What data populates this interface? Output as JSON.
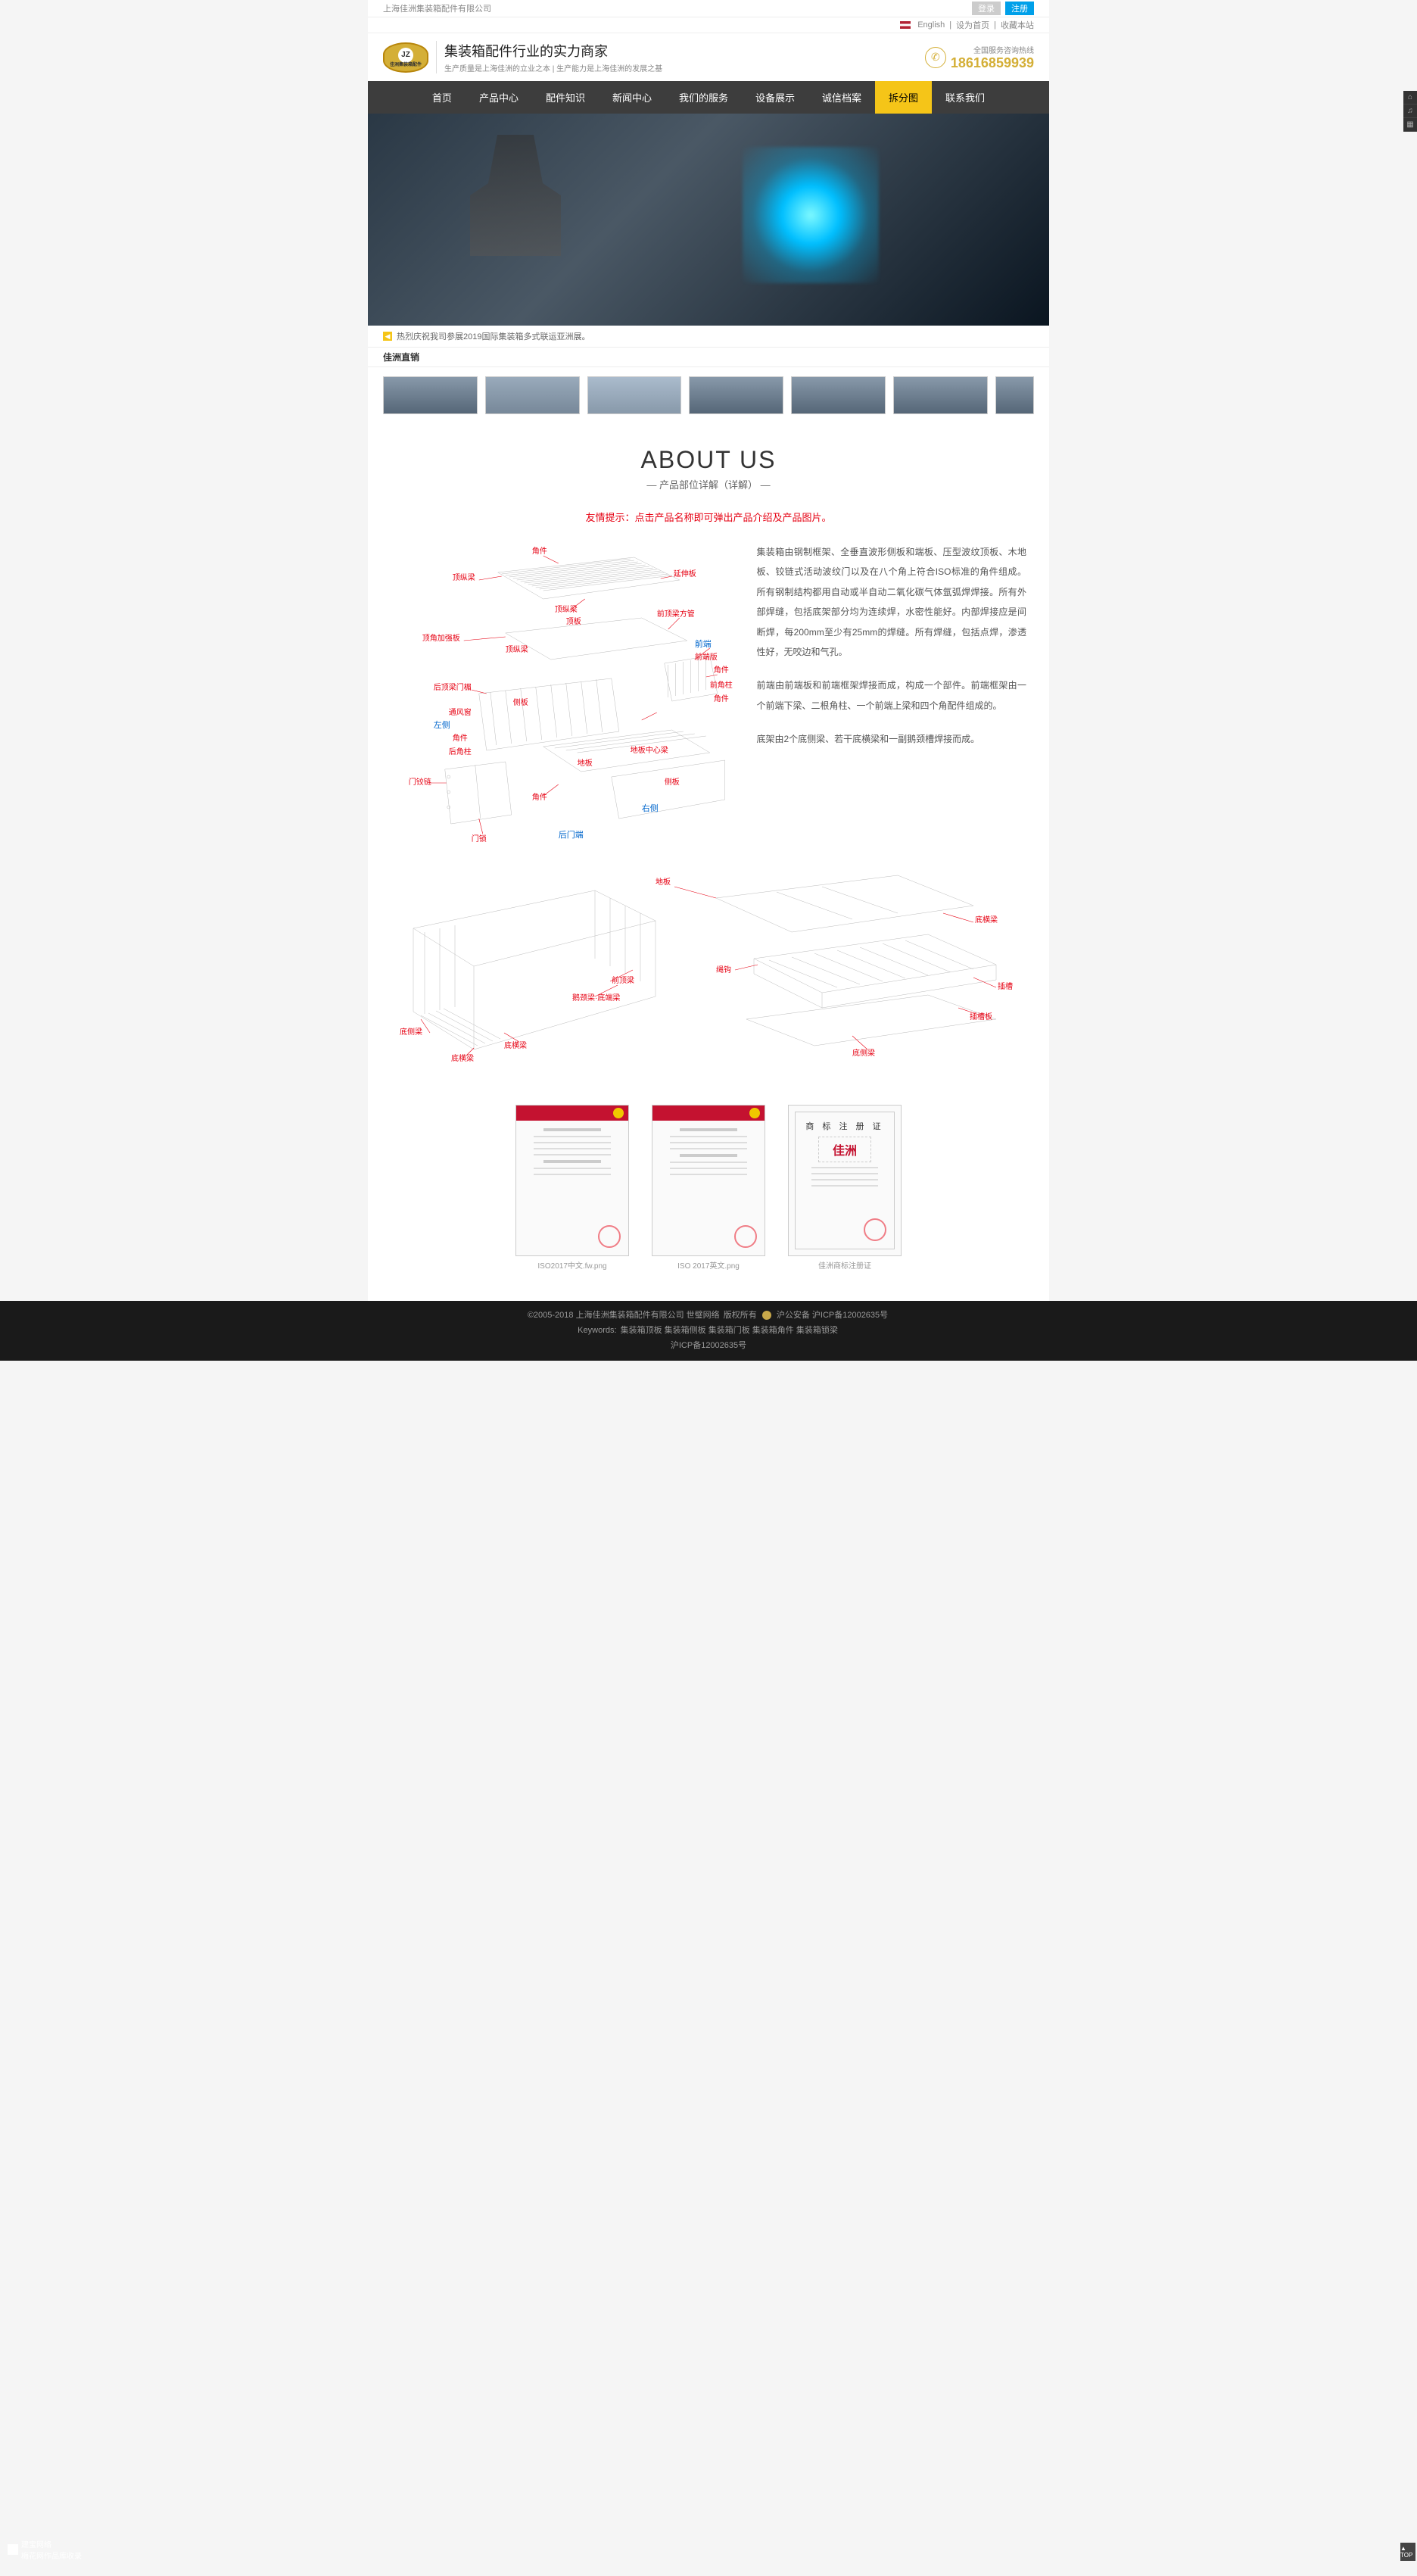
{
  "topbar": {
    "company": "上海佳洲集装箱配件有限公司",
    "login": "登录",
    "register": "注册",
    "lang": "English",
    "sethome": "设为首页",
    "fav": "收藏本站"
  },
  "header": {
    "logo_top": "JZ",
    "logo_bot": "佳洲集装箱配件",
    "slogan_h1": "集装箱配件行业的实力商家",
    "slogan_p": "生产质量是上海佳洲的立业之本 | 生产能力是上海佳洲的发展之基",
    "hot_label": "全国服务咨询热线",
    "hot_num": "18616859939"
  },
  "nav": {
    "items": [
      "首页",
      "产品中心",
      "配件知识",
      "新闻中心",
      "我们的服务",
      "设备展示",
      "诚信档案",
      "拆分图",
      "联系我们"
    ],
    "active_index": 7
  },
  "notice": {
    "text": "热烈庆祝我司参展2019国际集装箱多式联运亚洲展。"
  },
  "section_title": "佳洲直销",
  "about": {
    "h2": "ABOUT US",
    "sub": "— 产品部位详解（详解） —",
    "hint": "友情提示：点击产品名称即可弹出产品介绍及产品图片。"
  },
  "labels1": {
    "jiaojian1": "角件",
    "dingzongliang": "顶纵梁",
    "yanshenban": "延伸板",
    "dingzongliang2": "顶纵梁",
    "dingban": "顶板",
    "qiandingfangguan": "前顶梁方管",
    "dingjiaojiaqiangban": "顶角加强板",
    "dingzongliang3": "顶纵梁",
    "qianduan": "前端",
    "qianduanban": "前端版",
    "jiaojian2": "角件",
    "qianjiaozhu": "前角柱",
    "jiaojian3": "角件",
    "houdingliangmenmei": "后顶梁门楣",
    "ceban1": "侧板",
    "tongfengchuang": "通风窗",
    "zuoce": "左侧",
    "jiaojian4": "角件",
    "houjiaozhu": "后角柱",
    "diban": "地板",
    "dibanzhongxinliang": "地板中心梁",
    "ceban2": "侧板",
    "menjiaolian": "门铰链",
    "mensuo": "门锁",
    "jiaojian5": "角件",
    "youce": "右侧",
    "houmenduan": "后门端"
  },
  "labels2": {
    "diban": "地板",
    "dihengliang": "底横梁",
    "qiandingliang": "前顶梁",
    "edingliang": "鹅颈梁·底端梁",
    "shengou": "绳钩",
    "chacao": "插槽",
    "dihengliang2": "底横梁",
    "diceliang": "底侧梁",
    "dihengliang3": "底横梁",
    "chacaoban": "插槽板",
    "diceliang2": "底侧梁"
  },
  "desc": {
    "p1": "集装箱由钢制框架、全垂直波形侧板和端板、压型波纹顶板、木地板、铰链式活动波纹门以及在八个角上符合ISO标准的角件组成。所有钢制结构都用自动或半自动二氧化碳气体氩弧焊焊接。所有外部焊缝，包括底架部分均为连续焊，水密性能好。内部焊接应是间断焊，每200mm至少有25mm的焊缝。所有焊缝，包括点焊，渗透性好，无咬边和气孔。",
    "p2": "前端由前端板和前端框架焊接而成，构成一个部件。前端框架由一个前端下梁、二根角柱、一个前端上梁和四个角配件组成的。",
    "p3": "底架由2个底侧梁、若干底横梁和一副鹅颈槽焊接而成。"
  },
  "certs": {
    "c1": "ISO2017中文.fw.png",
    "c2": "ISO 2017英文.png",
    "c3": "佳洲商标注册证",
    "tm_title": "商 标 注 册 证",
    "tm_name": "佳洲"
  },
  "footer": {
    "line1_a": "©2005-2018 上海佳洲集装箱配件有限公司 世璧网络",
    "line1_b": "版权所有",
    "line1_c": "沪公安备 沪ICP备12002635号",
    "line2_label": "Keywords:",
    "line2_kw": "集装箱顶板 集装箱侧板 集装箱门板 集装箱角件 集装箱锁梁",
    "line3": "沪ICP备12002635号"
  },
  "bl": {
    "l1": "建宝网络",
    "l2": "梅花网作品库收录"
  },
  "totop": "▲\nTOP"
}
